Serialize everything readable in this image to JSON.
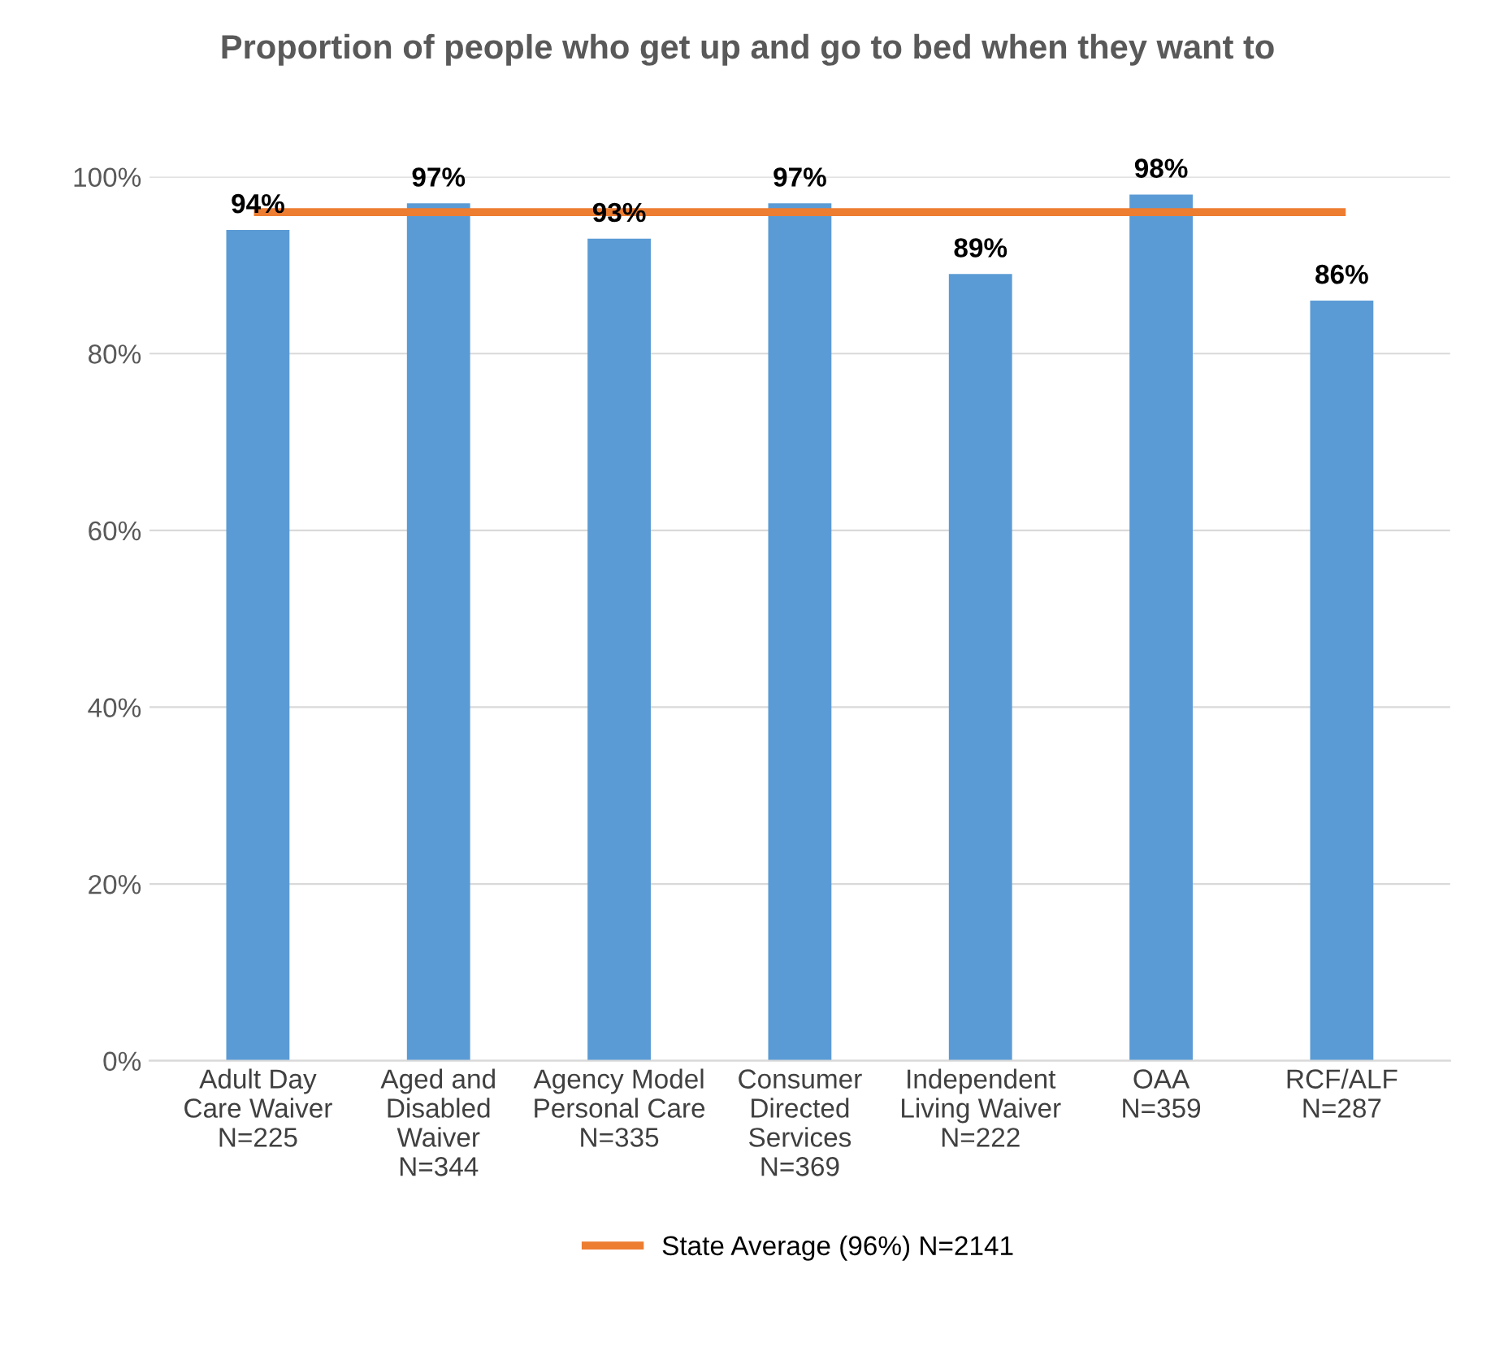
{
  "chart_data": {
    "type": "bar",
    "title": "Proportion of people who get up and go to bed when they want to",
    "categories": [
      "Adult Day\nCare Waiver\nN=225",
      "Aged and\nDisabled\nWaiver\nN=344",
      "Agency Model\nPersonal Care\nN=335",
      "Consumer\nDirected\nServices\nN=369",
      "Independent\nLiving Waiver\nN=222",
      "OAA\nN=359",
      "RCF/ALF\nN=287"
    ],
    "series": [
      {
        "color": "#5b9bd5",
        "values": [
          94,
          97,
          93,
          97,
          89,
          98,
          86
        ],
        "value_labels": [
          "94%",
          "97%",
          "93%",
          "97%",
          "89%",
          "98%",
          "86%"
        ]
      },
      {
        "type": "line",
        "name": "State Average (96%) N=2141",
        "color": "#ed7d31",
        "values": [
          96,
          96,
          96,
          96,
          96,
          96,
          96
        ]
      }
    ],
    "ylim": [
      0,
      100
    ],
    "yticks": [
      {
        "value": 0,
        "label": "0%"
      },
      {
        "value": 20,
        "label": "20%"
      },
      {
        "value": 40,
        "label": "40%"
      },
      {
        "value": 60,
        "label": "60%"
      },
      {
        "value": 80,
        "label": "80%"
      },
      {
        "value": 100,
        "label": "100%"
      }
    ],
    "grid": "y",
    "legend": "bottom",
    "marker": "none",
    "line_style": "solid"
  }
}
